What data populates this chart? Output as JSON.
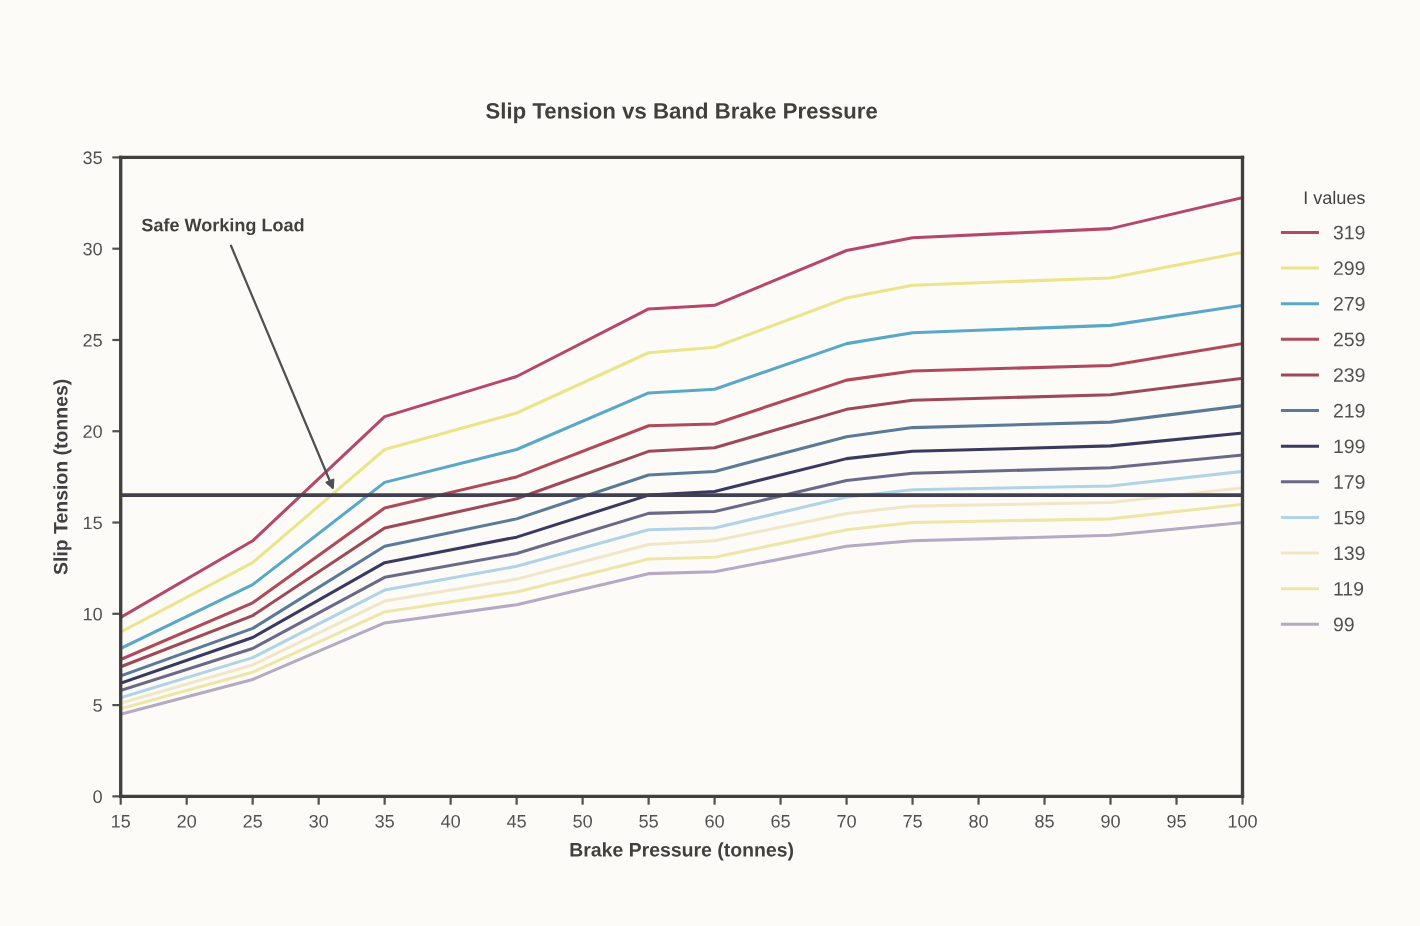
{
  "chart_data": {
    "type": "line",
    "title": "Slip Tension vs Band Brake Pressure",
    "xlabel": "Brake Pressure (tonnes)",
    "ylabel": "Slip Tension (tonnes)",
    "legend_title": "I values",
    "x": [
      15,
      25,
      35,
      45,
      55,
      60,
      70,
      75,
      90,
      100
    ],
    "series": [
      {
        "name": "319",
        "color": "#b5486a",
        "values": [
          9.8,
          14,
          20.8,
          23,
          26.7,
          26.9,
          29.9,
          30.6,
          31.1,
          32.8
        ]
      },
      {
        "name": "299",
        "color": "#ece48a",
        "values": [
          9.0,
          12.8,
          19.0,
          21.0,
          24.3,
          24.6,
          27.3,
          28.0,
          28.4,
          29.8
        ]
      },
      {
        "name": "279",
        "color": "#5aa8c8",
        "values": [
          8.1,
          11.6,
          17.2,
          19.0,
          22.1,
          22.3,
          24.8,
          25.4,
          25.8,
          26.9
        ]
      },
      {
        "name": "259",
        "color": "#b04a5a",
        "values": [
          7.5,
          10.6,
          15.8,
          17.5,
          20.3,
          20.4,
          22.8,
          23.3,
          23.6,
          24.8
        ]
      },
      {
        "name": "239",
        "color": "#9c4a58",
        "values": [
          7.1,
          9.9,
          14.7,
          16.3,
          18.9,
          19.1,
          21.2,
          21.7,
          22.0,
          22.9
        ]
      },
      {
        "name": "219",
        "color": "#5a7a98",
        "values": [
          6.6,
          9.2,
          13.7,
          15.2,
          17.6,
          17.8,
          19.7,
          20.2,
          20.5,
          21.4
        ]
      },
      {
        "name": "199",
        "color": "#3a3a60",
        "values": [
          6.2,
          8.7,
          12.8,
          14.2,
          16.5,
          16.7,
          18.5,
          18.9,
          19.2,
          19.9
        ]
      },
      {
        "name": "179",
        "color": "#6a6a88",
        "values": [
          5.8,
          8.1,
          12.0,
          13.3,
          15.5,
          15.6,
          17.3,
          17.7,
          18.0,
          18.7
        ]
      },
      {
        "name": "159",
        "color": "#b0d4e6",
        "values": [
          5.4,
          7.6,
          11.3,
          12.6,
          14.6,
          14.7,
          16.4,
          16.8,
          17.0,
          17.8
        ]
      },
      {
        "name": "139",
        "color": "#f0e6c8",
        "values": [
          5.1,
          7.2,
          10.7,
          11.9,
          13.8,
          14.0,
          15.5,
          15.9,
          16.1,
          16.9
        ]
      },
      {
        "name": "119",
        "color": "#eee6a8",
        "values": [
          4.8,
          6.8,
          10.1,
          11.2,
          13.0,
          13.1,
          14.6,
          15.0,
          15.2,
          16.0
        ]
      },
      {
        "name": "99",
        "color": "#b4aac4",
        "values": [
          4.5,
          6.4,
          9.5,
          10.5,
          12.2,
          12.3,
          13.7,
          14.0,
          14.3,
          15.0
        ]
      }
    ],
    "ref_lines": [
      {
        "axis": "y",
        "value": 16.5,
        "color": "#404050"
      }
    ],
    "annotations": [
      {
        "text": "Safe Working Load",
        "x": 31.3,
        "y": 16.5
      }
    ],
    "xlim": [
      15,
      100
    ],
    "ylim": [
      0,
      35
    ],
    "xticks": [
      15,
      20,
      25,
      30,
      35,
      40,
      45,
      50,
      55,
      60,
      65,
      70,
      75,
      80,
      85,
      90,
      95,
      100
    ],
    "yticks": [
      0,
      5,
      10,
      15,
      20,
      25,
      30,
      35
    ],
    "legend": "right",
    "grid": false,
    "marker": "none",
    "line_style": "solid"
  }
}
